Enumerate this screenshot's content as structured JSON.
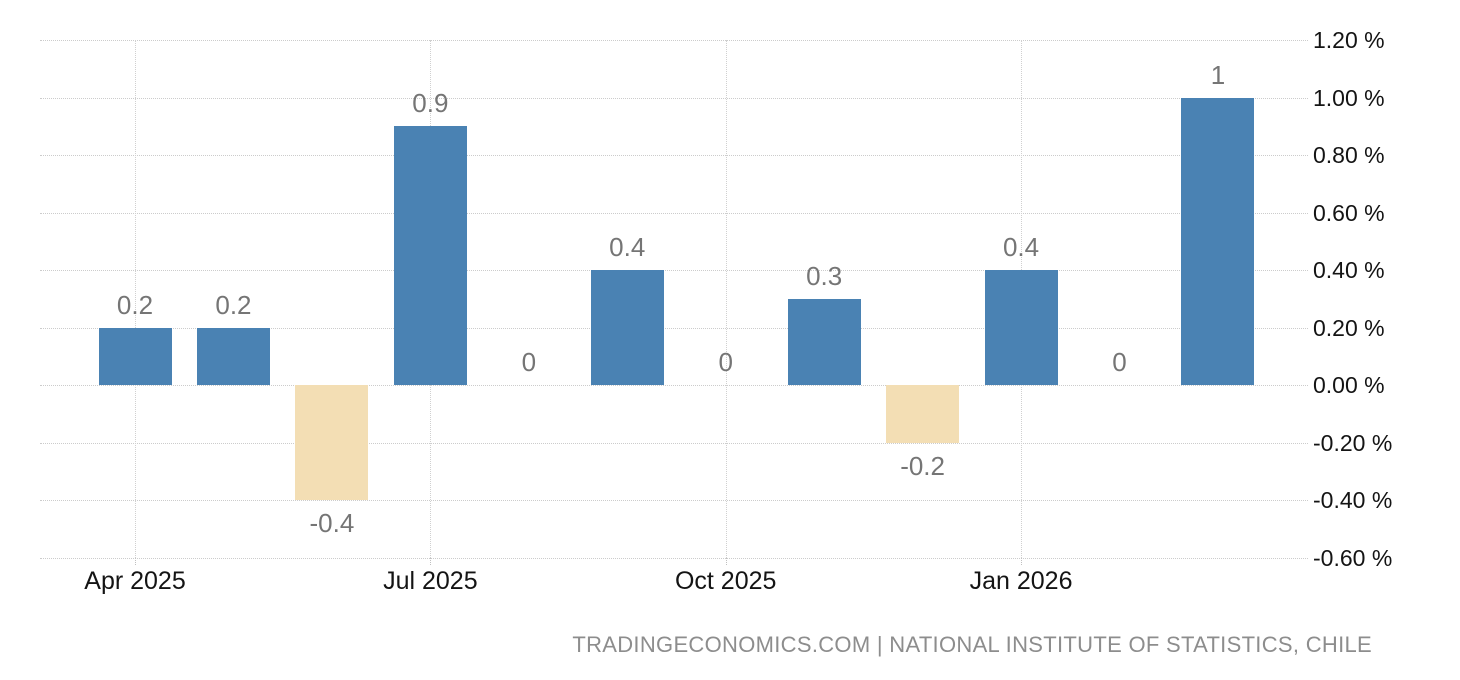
{
  "chart_data": {
    "type": "bar",
    "title": "",
    "bars": [
      {
        "label": "0.2",
        "value": 0.2
      },
      {
        "label": "0.2",
        "value": 0.2
      },
      {
        "label": "-0.4",
        "value": -0.4
      },
      {
        "label": "0.9",
        "value": 0.9
      },
      {
        "label": "0",
        "value": 0
      },
      {
        "label": "0.4",
        "value": 0.4
      },
      {
        "label": "0",
        "value": 0
      },
      {
        "label": "0.3",
        "value": 0.3
      },
      {
        "label": "-0.2",
        "value": -0.2
      },
      {
        "label": "0.4",
        "value": 0.4
      },
      {
        "label": "0",
        "value": 0
      },
      {
        "label": "1",
        "value": 1
      }
    ],
    "x_axis": {
      "ticks": [
        {
          "label": "Apr 2025",
          "bar_index": 0
        },
        {
          "label": "Jul 2025",
          "bar_index": 3
        },
        {
          "label": "Oct 2025",
          "bar_index": 6
        },
        {
          "label": "Jan 2026",
          "bar_index": 9
        }
      ]
    },
    "y_axis": {
      "unit": "%",
      "min": -0.6,
      "max": 1.2,
      "step": 0.2,
      "ticks": [
        {
          "label": "1.20 %",
          "value": 1.2
        },
        {
          "label": "1.00 %",
          "value": 1.0
        },
        {
          "label": "0.80 %",
          "value": 0.8
        },
        {
          "label": "0.60 %",
          "value": 0.6
        },
        {
          "label": "0.40 %",
          "value": 0.4
        },
        {
          "label": "0.20 %",
          "value": 0.2
        },
        {
          "label": "0.00 %",
          "value": 0.0
        },
        {
          "label": "-0.20 %",
          "value": -0.2
        },
        {
          "label": "-0.40 %",
          "value": -0.4
        },
        {
          "label": "-0.60 %",
          "value": -0.6
        }
      ]
    },
    "grid_style": "dotted",
    "legend": [],
    "colors": {
      "positive_bar": "#4a82b3",
      "negative_bar": "#f3deb4",
      "gridline": "#cccccc",
      "value_label": "#757575",
      "axis_label": "#141414",
      "attribution_text": "#8d8d8d",
      "background": "#ffffff"
    },
    "attribution": "TRADINGECONOMICS.COM | NATIONAL INSTITUTE OF STATISTICS, CHILE"
  }
}
